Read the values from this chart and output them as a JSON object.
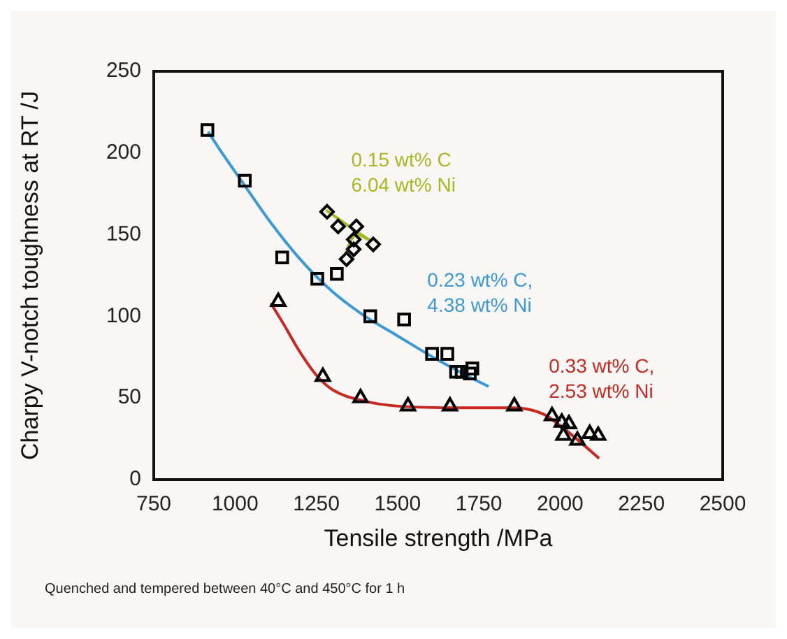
{
  "chart_data": {
    "type": "scatter",
    "xlabel": "Tensile strength /MPa",
    "ylabel": "Charpy V-notch toughness at RT /J",
    "xlim": [
      750,
      2500
    ],
    "xticks": [
      750,
      1000,
      1250,
      1500,
      1750,
      2000,
      2250,
      2500
    ],
    "ylim": [
      0,
      250
    ],
    "yticks": [
      0,
      50,
      100,
      150,
      200,
      250
    ],
    "grid": false,
    "legend": false,
    "series": [
      {
        "marker": "square",
        "color": "#000000",
        "x": [
          915,
          1030,
          1145,
          1253,
          1313,
          1416,
          1520,
          1606,
          1653,
          1680,
          1697,
          1722,
          1730
        ],
        "values": [
          214,
          183,
          136,
          123,
          126,
          100,
          98,
          77,
          77,
          66,
          66,
          65,
          68
        ]
      },
      {
        "marker": "diamond",
        "color": "#000000",
        "x": [
          1283,
          1317,
          1373,
          1365,
          1425,
          1365,
          1343
        ],
        "values": [
          164,
          155,
          155,
          147,
          144,
          141,
          135
        ]
      },
      {
        "marker": "triangle",
        "color": "#000000",
        "x": [
          1133,
          1270,
          1386,
          1532,
          1661,
          1859,
          1975,
          2005,
          2027,
          2010,
          2053,
          2091,
          2117
        ],
        "values": [
          109,
          63,
          50,
          45,
          45,
          45,
          39,
          35,
          34,
          27,
          24,
          28,
          27
        ]
      },
      {
        "type": "line",
        "marker": "none",
        "name": "0.23 wt% C,\n4.38 wt% Ni",
        "color": "#3b9ad6",
        "x": [
          917,
          950,
          1030,
          1100,
          1200,
          1300,
          1400,
          1500,
          1600,
          1700,
          1780
        ],
        "values": [
          213,
          203,
          180,
          160,
          135,
          115,
          100,
          88,
          76,
          65,
          57
        ]
      },
      {
        "type": "line",
        "marker": "none",
        "name": "0.15 wt% C\n6.04 wt% Ni",
        "color": "#a8b820",
        "x": [
          1280,
          1330,
          1380,
          1420
        ],
        "values": [
          165,
          158,
          151,
          146
        ]
      },
      {
        "type": "line",
        "marker": "none",
        "color": "#a8b820",
        "x": [
          1340,
          1355,
          1375,
          1410
        ],
        "values": [
          138,
          146,
          150,
          147
        ]
      },
      {
        "type": "line",
        "marker": "none",
        "name": "0.33 wt% C,\n2.53 wt% Ni",
        "color": "#c8281e",
        "x": [
          1110,
          1150,
          1200,
          1250,
          1300,
          1400,
          1500,
          1700,
          1850,
          1950,
          2000,
          2050,
          2120
        ],
        "values": [
          108,
          95,
          78,
          64,
          55,
          48,
          45,
          44,
          44,
          40,
          33,
          25,
          13
        ]
      }
    ],
    "annotations": [
      "Quenched and tempered between 40°C and 450°C for 1 h"
    ]
  }
}
